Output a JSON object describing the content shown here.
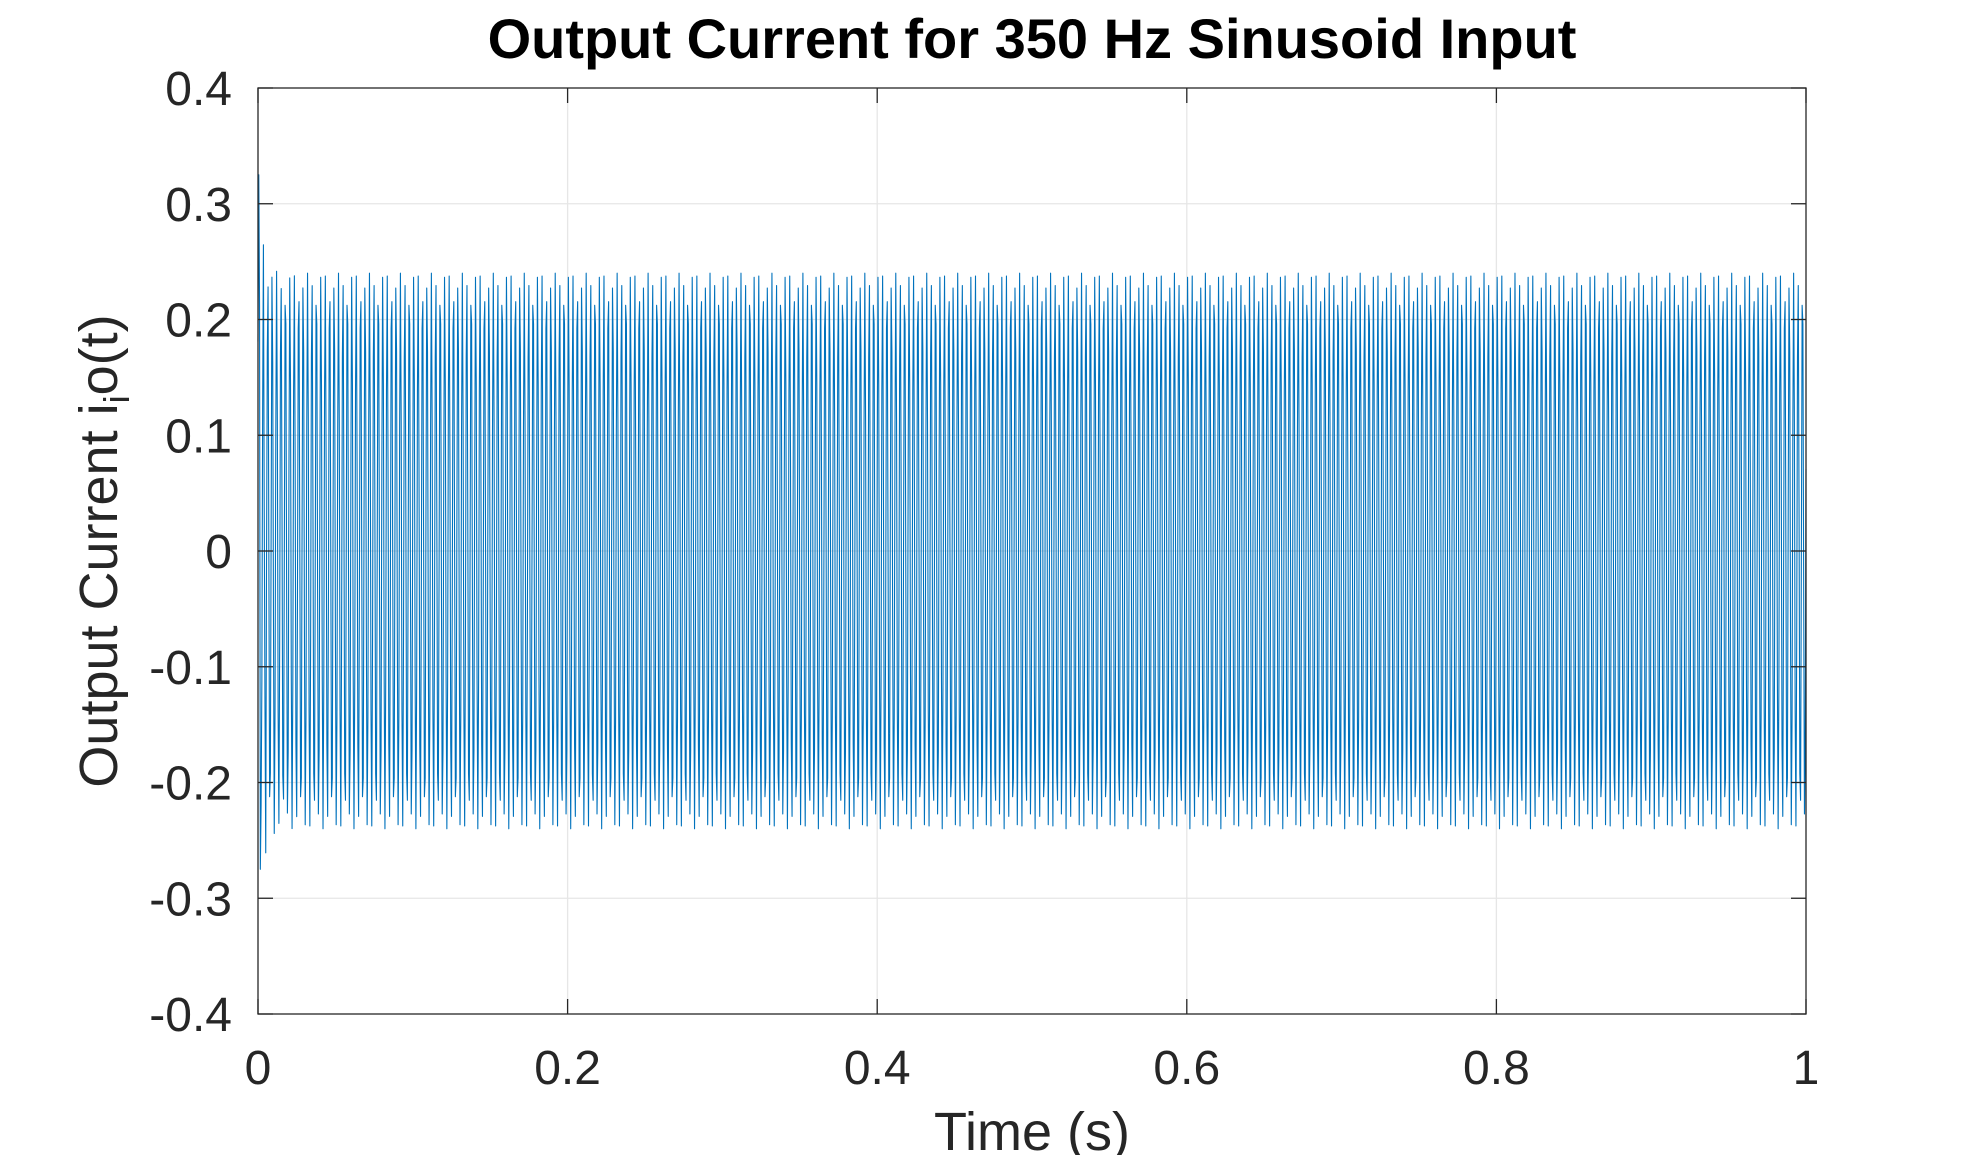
{
  "chart_data": {
    "type": "line",
    "title": "Output Current for 350 Hz Sinusoid Input",
    "xlabel": "Time (s)",
    "ylabel": {
      "main": "Output Current i",
      "sub": "i",
      "tail": "o(t)"
    },
    "xlim": [
      0,
      1
    ],
    "ylim": [
      -0.4,
      0.4
    ],
    "xticks": [
      0,
      0.2,
      0.4,
      0.6,
      0.8,
      1
    ],
    "xtick_labels": [
      "0",
      "0.2",
      "0.4",
      "0.6",
      "0.8",
      "1"
    ],
    "yticks": [
      -0.4,
      -0.3,
      -0.2,
      -0.1,
      0,
      0.1,
      0.2,
      0.3,
      0.4
    ],
    "ytick_labels": [
      "-0.4",
      "-0.3",
      "-0.2",
      "-0.1",
      "0",
      "0.1",
      "0.2",
      "0.3",
      "0.4"
    ],
    "grid": true,
    "series": [
      {
        "color": "#0072bd",
        "input_frequency_hz": 350,
        "steady_state_amplitude": 0.24,
        "initial_peak": 0.325,
        "initial_trough": -0.275
      }
    ]
  }
}
